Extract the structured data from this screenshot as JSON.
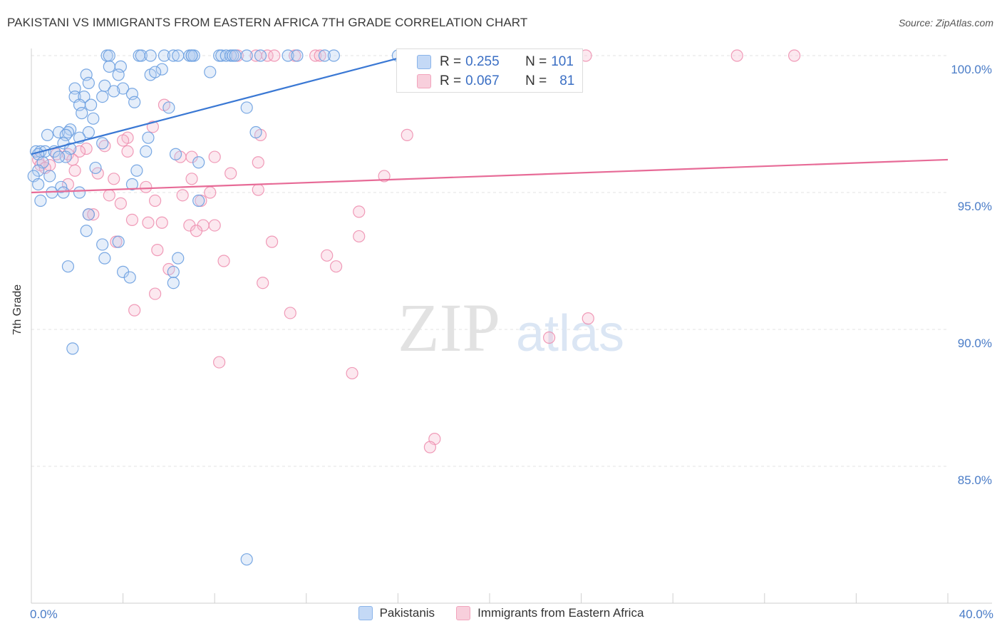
{
  "title": "PAKISTANI VS IMMIGRANTS FROM EASTERN AFRICA 7TH GRADE CORRELATION CHART",
  "source": "Source: ZipAtlas.com",
  "watermark": {
    "zip": "ZIP",
    "atlas": "atlas"
  },
  "stats": [
    {
      "r_label": "R =",
      "r_value": "0.255",
      "n_label": "N =",
      "n_value": "101",
      "color": "#8ab4ea"
    },
    {
      "r_label": "R =",
      "r_value": "0.067",
      "n_label": "N =",
      "n_value": "81",
      "color": "#f2a4bd"
    }
  ],
  "colors": {
    "blue": "#6a9fe0",
    "blue_line": "#3a78d4",
    "pink": "#ee90b0",
    "pink_line": "#e76b97",
    "tick_text": "#4a7cc7"
  },
  "chart_data": {
    "type": "scatter",
    "title": "PAKISTANI VS IMMIGRANTS FROM EASTERN AFRICA 7TH GRADE CORRELATION CHART",
    "xlabel": "",
    "ylabel": "7th Grade",
    "xlim": [
      0,
      40
    ],
    "ylim": [
      80.5,
      100.7
    ],
    "x_tick_labels": {
      "min": "0.0%",
      "max": "40.0%"
    },
    "y_ticks": [
      {
        "value": 100,
        "label": "100.0%"
      },
      {
        "value": 95,
        "label": "95.0%"
      },
      {
        "value": 90,
        "label": "90.0%"
      },
      {
        "value": 85,
        "label": "85.0%"
      }
    ],
    "legend": [
      "Pakistanis",
      "Immigrants from Eastern Africa"
    ],
    "series": [
      {
        "name": "Pakistanis",
        "trend": {
          "x": [
            0,
            16
          ],
          "y": [
            96.4,
            99.9
          ]
        },
        "points": [
          [
            3.3,
            100
          ],
          [
            3.4,
            100
          ],
          [
            4.7,
            100
          ],
          [
            4.8,
            100
          ],
          [
            5.2,
            100
          ],
          [
            5.8,
            100
          ],
          [
            6.2,
            100
          ],
          [
            6.4,
            100
          ],
          [
            6.9,
            100
          ],
          [
            7.0,
            100
          ],
          [
            7.1,
            100
          ],
          [
            7.0,
            100
          ],
          [
            8.2,
            100
          ],
          [
            8.3,
            100
          ],
          [
            8.5,
            100
          ],
          [
            8.7,
            100
          ],
          [
            8.8,
            100
          ],
          [
            8.9,
            100
          ],
          [
            9.4,
            100
          ],
          [
            10.0,
            100
          ],
          [
            11.2,
            100
          ],
          [
            11.6,
            100
          ],
          [
            12.8,
            100
          ],
          [
            13.2,
            100
          ],
          [
            16.0,
            100
          ],
          [
            3.4,
            99.6
          ],
          [
            3.9,
            99.6
          ],
          [
            5.7,
            99.5
          ],
          [
            7.8,
            99.4
          ],
          [
            2.4,
            99.3
          ],
          [
            3.8,
            99.3
          ],
          [
            5.2,
            99.3
          ],
          [
            5.4,
            99.4
          ],
          [
            2.5,
            99.0
          ],
          [
            3.2,
            98.9
          ],
          [
            4.0,
            98.8
          ],
          [
            1.9,
            98.8
          ],
          [
            3.6,
            98.7
          ],
          [
            4.4,
            98.6
          ],
          [
            1.9,
            98.5
          ],
          [
            2.3,
            98.5
          ],
          [
            3.1,
            98.5
          ],
          [
            4.5,
            98.3
          ],
          [
            6.0,
            98.1
          ],
          [
            2.1,
            98.2
          ],
          [
            2.6,
            98.2
          ],
          [
            2.2,
            97.9
          ],
          [
            9.4,
            98.1
          ],
          [
            2.7,
            97.7
          ],
          [
            1.7,
            97.3
          ],
          [
            1.2,
            97.2
          ],
          [
            1.6,
            97.2
          ],
          [
            2.5,
            97.2
          ],
          [
            0.7,
            97.1
          ],
          [
            1.5,
            97.1
          ],
          [
            9.8,
            97.2
          ],
          [
            2.1,
            97.0
          ],
          [
            5.1,
            97.0
          ],
          [
            3.1,
            96.8
          ],
          [
            1.4,
            96.8
          ],
          [
            0.2,
            96.5
          ],
          [
            0.4,
            96.5
          ],
          [
            0.6,
            96.5
          ],
          [
            1.0,
            96.5
          ],
          [
            1.7,
            96.6
          ],
          [
            0.3,
            96.4
          ],
          [
            5.0,
            96.5
          ],
          [
            6.3,
            96.4
          ],
          [
            1.5,
            96.3
          ],
          [
            0.5,
            96.1
          ],
          [
            1.2,
            96.3
          ],
          [
            7.3,
            96.1
          ],
          [
            2.8,
            95.9
          ],
          [
            0.3,
            95.8
          ],
          [
            0.1,
            95.6
          ],
          [
            0.8,
            95.6
          ],
          [
            4.6,
            95.8
          ],
          [
            0.3,
            95.3
          ],
          [
            1.3,
            95.2
          ],
          [
            4.4,
            95.3
          ],
          [
            0.9,
            95.0
          ],
          [
            1.4,
            95.0
          ],
          [
            2.1,
            95.0
          ],
          [
            0.4,
            94.7
          ],
          [
            7.3,
            94.7
          ],
          [
            2.5,
            94.2
          ],
          [
            2.4,
            93.6
          ],
          [
            3.1,
            93.1
          ],
          [
            3.8,
            93.2
          ],
          [
            3.2,
            92.6
          ],
          [
            6.4,
            92.6
          ],
          [
            1.6,
            92.3
          ],
          [
            4.0,
            92.1
          ],
          [
            6.2,
            92.1
          ],
          [
            4.3,
            91.9
          ],
          [
            6.2,
            91.7
          ],
          [
            1.8,
            89.3
          ],
          [
            9.4,
            81.6
          ]
        ]
      },
      {
        "name": "Immigrants from Eastern Africa",
        "trend": {
          "x": [
            0,
            40
          ],
          "y": [
            95.0,
            96.2
          ]
        },
        "points": [
          [
            9.0,
            100
          ],
          [
            9.8,
            100
          ],
          [
            10.3,
            100
          ],
          [
            10.6,
            100
          ],
          [
            11.5,
            100
          ],
          [
            12.4,
            100
          ],
          [
            12.6,
            100
          ],
          [
            16.8,
            100
          ],
          [
            17.5,
            100
          ],
          [
            18.4,
            100
          ],
          [
            24.2,
            100
          ],
          [
            30.8,
            100
          ],
          [
            33.3,
            100
          ],
          [
            5.8,
            98.2
          ],
          [
            16.4,
            97.1
          ],
          [
            5.3,
            97.4
          ],
          [
            10.0,
            97.1
          ],
          [
            4.2,
            97.0
          ],
          [
            4.0,
            96.9
          ],
          [
            3.2,
            96.7
          ],
          [
            2.4,
            96.6
          ],
          [
            2.1,
            96.5
          ],
          [
            4.2,
            96.5
          ],
          [
            1.6,
            96.4
          ],
          [
            7.0,
            96.3
          ],
          [
            8.0,
            96.3
          ],
          [
            1.1,
            96.4
          ],
          [
            6.5,
            96.3
          ],
          [
            1.8,
            96.2
          ],
          [
            0.3,
            96.2
          ],
          [
            0.4,
            96.0
          ],
          [
            0.8,
            96.0
          ],
          [
            0.6,
            95.9
          ],
          [
            9.9,
            96.1
          ],
          [
            1.9,
            95.8
          ],
          [
            2.9,
            95.7
          ],
          [
            8.7,
            95.7
          ],
          [
            15.4,
            95.6
          ],
          [
            7.0,
            95.5
          ],
          [
            5.0,
            95.2
          ],
          [
            1.6,
            95.3
          ],
          [
            3.6,
            95.5
          ],
          [
            3.4,
            94.9
          ],
          [
            6.6,
            94.9
          ],
          [
            7.8,
            95.0
          ],
          [
            9.9,
            95.1
          ],
          [
            5.4,
            94.7
          ],
          [
            3.9,
            94.6
          ],
          [
            7.4,
            94.7
          ],
          [
            2.5,
            94.2
          ],
          [
            2.7,
            94.2
          ],
          [
            14.3,
            94.3
          ],
          [
            4.4,
            94.0
          ],
          [
            5.1,
            93.9
          ],
          [
            5.7,
            93.9
          ],
          [
            6.9,
            93.8
          ],
          [
            7.5,
            93.8
          ],
          [
            8.0,
            93.8
          ],
          [
            7.2,
            93.6
          ],
          [
            14.3,
            93.4
          ],
          [
            3.7,
            93.2
          ],
          [
            10.5,
            93.2
          ],
          [
            5.5,
            92.9
          ],
          [
            12.9,
            92.7
          ],
          [
            8.4,
            92.5
          ],
          [
            13.3,
            92.3
          ],
          [
            6.0,
            92.2
          ],
          [
            10.1,
            91.7
          ],
          [
            5.4,
            91.3
          ],
          [
            4.5,
            90.7
          ],
          [
            11.3,
            90.6
          ],
          [
            24.3,
            90.4
          ],
          [
            22.6,
            89.7
          ],
          [
            8.2,
            88.8
          ],
          [
            14.0,
            88.4
          ],
          [
            17.6,
            86.0
          ],
          [
            17.4,
            85.7
          ]
        ]
      }
    ]
  }
}
